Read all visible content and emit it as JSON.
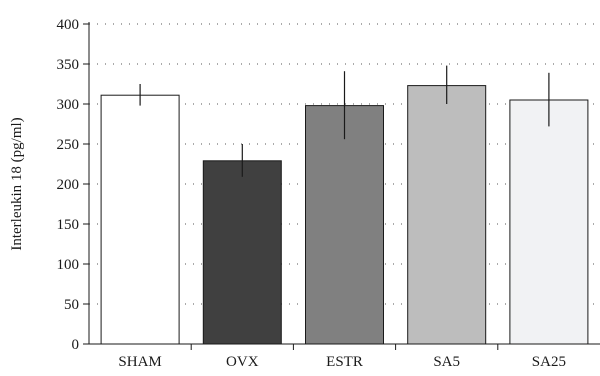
{
  "chart_data": {
    "type": "bar",
    "title": "",
    "xlabel": "",
    "ylabel": "Interleukin 18 (pg/ml)",
    "ylim": [
      0,
      400
    ],
    "yticks": [
      0,
      50,
      100,
      150,
      200,
      250,
      300,
      350,
      400
    ],
    "grid": true,
    "categories": [
      "SHAM",
      "OVX",
      "ESTR",
      "SA5",
      "SA25"
    ],
    "values": [
      311,
      229,
      298,
      323,
      305
    ],
    "error_low": [
      298,
      209,
      256,
      300,
      272
    ],
    "error_high": [
      325,
      250,
      341,
      348,
      339
    ],
    "colors": [
      "#ffffff",
      "#404040",
      "#808080",
      "#bdbdbd",
      "#f1f2f4"
    ]
  }
}
